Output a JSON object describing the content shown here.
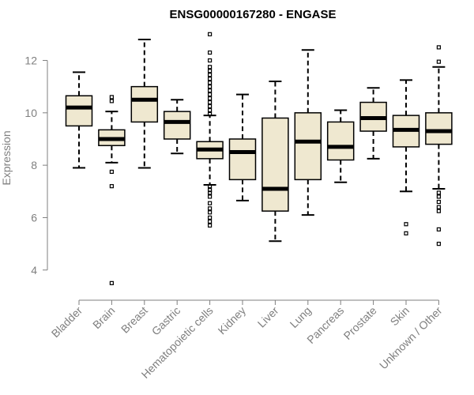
{
  "chart_data": {
    "type": "boxplot",
    "title": "ENSG00000167280 - ENGASE",
    "xlabel": "",
    "ylabel": "Expression",
    "ylim": [
      3.3,
      13.1
    ],
    "yticks": [
      4,
      6,
      8,
      10,
      12
    ],
    "box_fill": "#efe8d0",
    "categories": [
      "Bladder",
      "Brain",
      "Breast",
      "Gastric",
      "Hematopoietic cells",
      "Kidney",
      "Liver",
      "Lung",
      "Pancreas",
      "Prostate",
      "Skin",
      "Unknown / Other"
    ],
    "boxes": [
      {
        "name": "Bladder",
        "whisker_low": 7.9,
        "q1": 9.5,
        "median": 10.2,
        "q3": 10.65,
        "whisker_high": 11.55,
        "outliers": []
      },
      {
        "name": "Brain",
        "whisker_low": 8.1,
        "q1": 8.75,
        "median": 9.0,
        "q3": 9.35,
        "whisker_high": 10.05,
        "outliers": [
          10.6,
          10.45,
          7.75,
          7.2,
          3.5
        ]
      },
      {
        "name": "Breast",
        "whisker_low": 7.9,
        "q1": 9.65,
        "median": 10.5,
        "q3": 11.0,
        "whisker_high": 12.8,
        "outliers": []
      },
      {
        "name": "Gastric",
        "whisker_low": 8.45,
        "q1": 9.0,
        "median": 9.65,
        "q3": 10.05,
        "whisker_high": 10.5,
        "outliers": []
      },
      {
        "name": "Hematopoietic cells",
        "whisker_low": 7.25,
        "q1": 8.25,
        "median": 8.6,
        "q3": 8.9,
        "whisker_high": 9.9,
        "outliers": [
          13.0,
          12.3,
          12.0,
          11.75,
          11.6,
          11.45,
          11.3,
          11.15,
          11.0,
          10.85,
          10.7,
          10.55,
          10.4,
          10.25,
          10.1,
          9.95,
          7.2,
          7.05,
          6.95,
          6.8,
          6.55,
          6.35,
          6.2,
          6.0,
          5.85,
          5.7
        ]
      },
      {
        "name": "Kidney",
        "whisker_low": 6.65,
        "q1": 7.45,
        "median": 8.5,
        "q3": 9.0,
        "whisker_high": 10.7,
        "outliers": []
      },
      {
        "name": "Liver",
        "whisker_low": 5.1,
        "q1": 6.25,
        "median": 7.1,
        "q3": 9.8,
        "whisker_high": 11.2,
        "outliers": []
      },
      {
        "name": "Lung",
        "whisker_low": 6.1,
        "q1": 7.45,
        "median": 8.9,
        "q3": 10.0,
        "whisker_high": 12.4,
        "outliers": []
      },
      {
        "name": "Pancreas",
        "whisker_low": 7.35,
        "q1": 8.2,
        "median": 8.7,
        "q3": 9.65,
        "whisker_high": 10.1,
        "outliers": []
      },
      {
        "name": "Prostate",
        "whisker_low": 8.25,
        "q1": 9.3,
        "median": 9.8,
        "q3": 10.4,
        "whisker_high": 10.95,
        "outliers": []
      },
      {
        "name": "Skin",
        "whisker_low": 7.0,
        "q1": 8.7,
        "median": 9.35,
        "q3": 9.9,
        "whisker_high": 11.25,
        "outliers": [
          5.75,
          5.4
        ]
      },
      {
        "name": "Unknown / Other",
        "whisker_low": 7.1,
        "q1": 8.8,
        "median": 9.3,
        "q3": 10.0,
        "whisker_high": 11.75,
        "outliers": [
          12.5,
          11.95,
          6.95,
          6.8,
          6.6,
          6.4,
          6.25,
          5.55,
          5.0
        ]
      }
    ]
  }
}
